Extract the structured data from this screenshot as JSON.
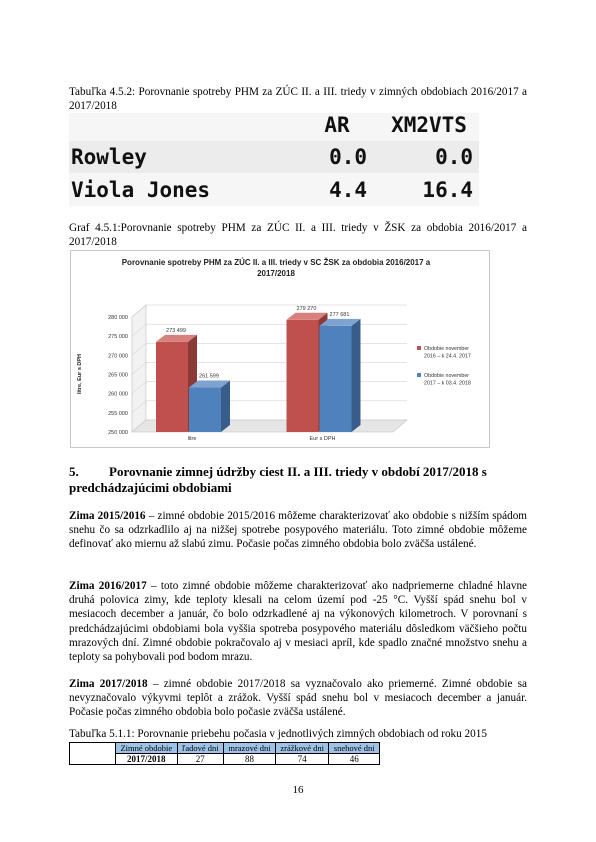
{
  "table452": {
    "caption": "Tabuľka 4.5.2: Porovnanie spotreby PHM za ZÚC II. a III. triedy v zimných obdobiach 2016/2017 a 2017/2018",
    "headers": [
      "AR",
      "XM2VTS"
    ],
    "rows": [
      {
        "name": "Rowley",
        "ar": "0.0",
        "xm": "0.0"
      },
      {
        "name": "Viola Jones",
        "ar": "4.4",
        "xm": "16.4"
      }
    ]
  },
  "graph": {
    "caption": "Graf 4.5.1:Porovnanie spotreby PHM za ZÚC II. a III. triedy v ŽSK za obdobia 2016/2017 a 2017/2018"
  },
  "chart_data": {
    "type": "bar",
    "title": "Porovnanie spotreby PHM za ZÚC  II. a III. triedy v SC ŽSK za obdobia 2016/2017  a 2017/2018",
    "ylabel": "litre, Eur s DPH",
    "ylim": [
      250000,
      280000
    ],
    "yticks": [
      "250 000",
      "255 000",
      "260 000",
      "265 000",
      "270 000",
      "275 000",
      "280 000"
    ],
    "categories": [
      "litre",
      "Eur s DPH"
    ],
    "series": [
      {
        "name": "Obdobie november 2016 – k 24.4. 2017",
        "color": "#c0504d",
        "values": [
          273499,
          279270
        ],
        "labels": [
          "273 499",
          "279 270"
        ]
      },
      {
        "name": "Obdobie november 2017 – k 03.4. 2018",
        "color": "#4f81bd",
        "values": [
          261599,
          277681
        ],
        "labels": [
          "261 599",
          "277 681"
        ]
      }
    ]
  },
  "section5": {
    "number": "5.",
    "title": "Porovnanie zimnej údržby ciest II. a III. triedy v období 2017/2018 s predchádzajúcimi obdobiami"
  },
  "paragraphs": [
    {
      "lead": "Zima 2015/2016",
      "text": " –  zimné  obdobie 2015/2016 môžeme charakterizovať ako obdobie s nižším spádom snehu čo sa odzrkadlilo aj na nižšej spotrebe posypového materiálu. Toto zimné obdobie môžeme definovať ako miernu až slabú zimu. Počasie počas zimného obdobia bolo zväčša ustálené."
    },
    {
      "lead": "Zima 2016/2017",
      "text": " – toto zimné  obdobie môžeme charakterizovať ako nadpriemerne chladné hlavne druhá polovica zimy, kde teploty klesali na celom území pod -25 °C. Vyšší spád snehu bol v mesiacoch december a január, čo bolo odzrkadlené aj na výkonových kilometroch. V porovnaní s predchádzajúcimi obdobiami bola vyššia spotreba posypového materiálu dôsledkom väčšieho počtu mrazových dní. Zimné obdobie pokračovalo aj v mesiaci apríl, kde spadlo značné množstvo snehu a teploty sa pohybovali pod bodom mrazu."
    },
    {
      "lead": "Zima 2017/2018",
      "text": " –  zimné  obdobie 2017/2018 sa vyznačovalo ako priemerné. Zimné obdobie sa nevyznačovalo výkyvmi teplôt a zrážok. Vyšší spád snehu bol v mesiacoch december a január. Počasie počas zimného obdobia bolo počasie zväčša ustálené."
    }
  ],
  "table511": {
    "caption": "Tabuľka 5.1.1: Porovnanie priebehu počasia v jednotlivých zimných obdobiach od roku 2015",
    "headers": [
      "Zimné obdobie",
      "ľadové dni",
      "mrazové dni",
      "zrážkové dni",
      "snehové dni"
    ],
    "row": [
      "2017/2018",
      "27",
      "88",
      "74",
      "46"
    ]
  },
  "page_number": "16",
  "colors": {
    "red": "#c0504d",
    "blue": "#4f81bd",
    "table_header_bg": "#9dc3e6"
  }
}
